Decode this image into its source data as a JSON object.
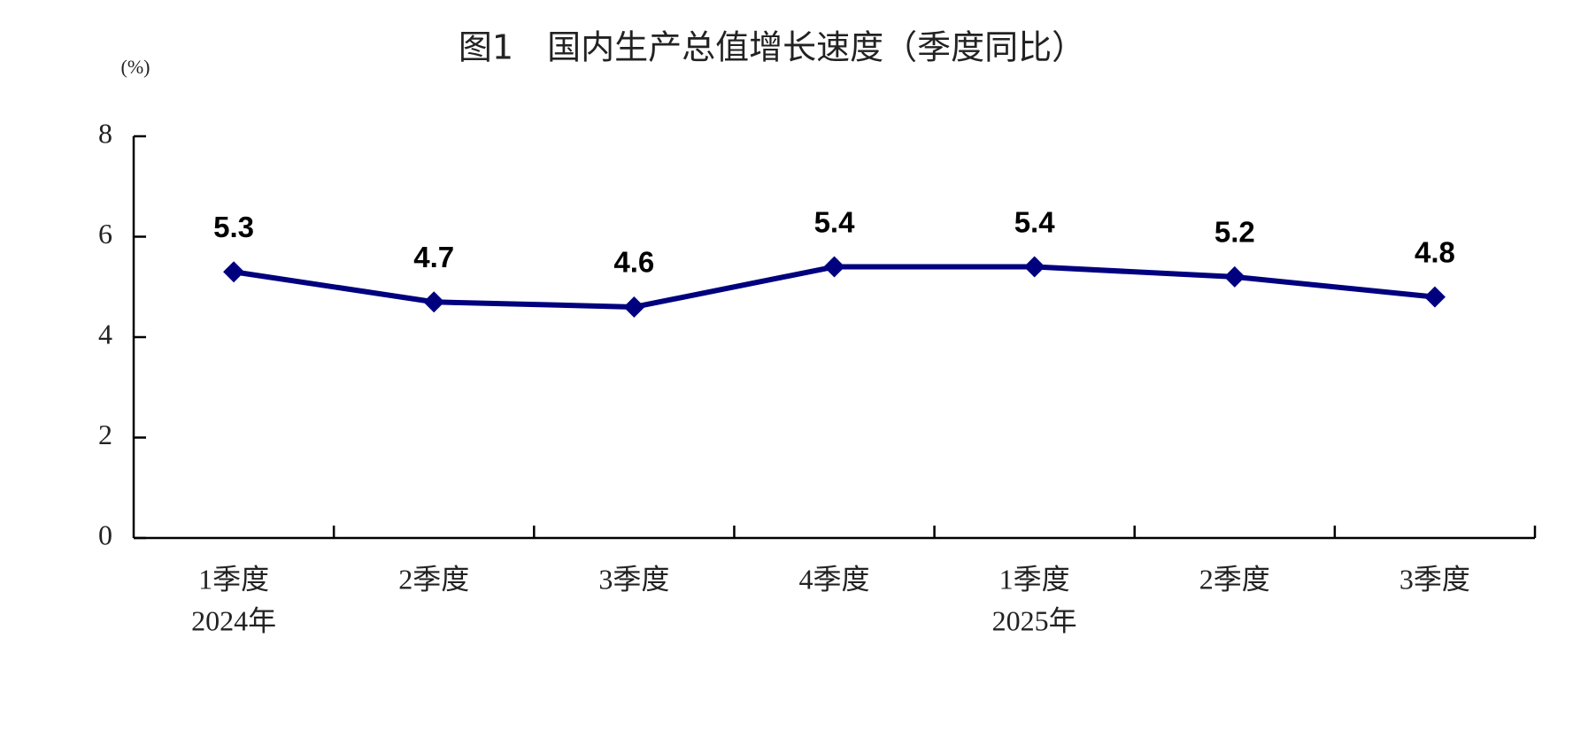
{
  "chart_data": {
    "type": "line",
    "title": "图1　国内生产总值增长速度（季度同比）",
    "y_label": "(%)",
    "categories": [
      "1季度",
      "2季度",
      "3季度",
      "4季度",
      "1季度",
      "2季度",
      "3季度"
    ],
    "group_labels": [
      "2024年",
      null,
      null,
      null,
      "2025年",
      null,
      null
    ],
    "values": [
      5.3,
      4.7,
      4.6,
      5.4,
      5.4,
      5.2,
      4.8
    ],
    "color": "#00007f",
    "ylim": [
      0,
      8
    ],
    "yticks": [
      0,
      2,
      4,
      6,
      8
    ],
    "grid": false
  }
}
